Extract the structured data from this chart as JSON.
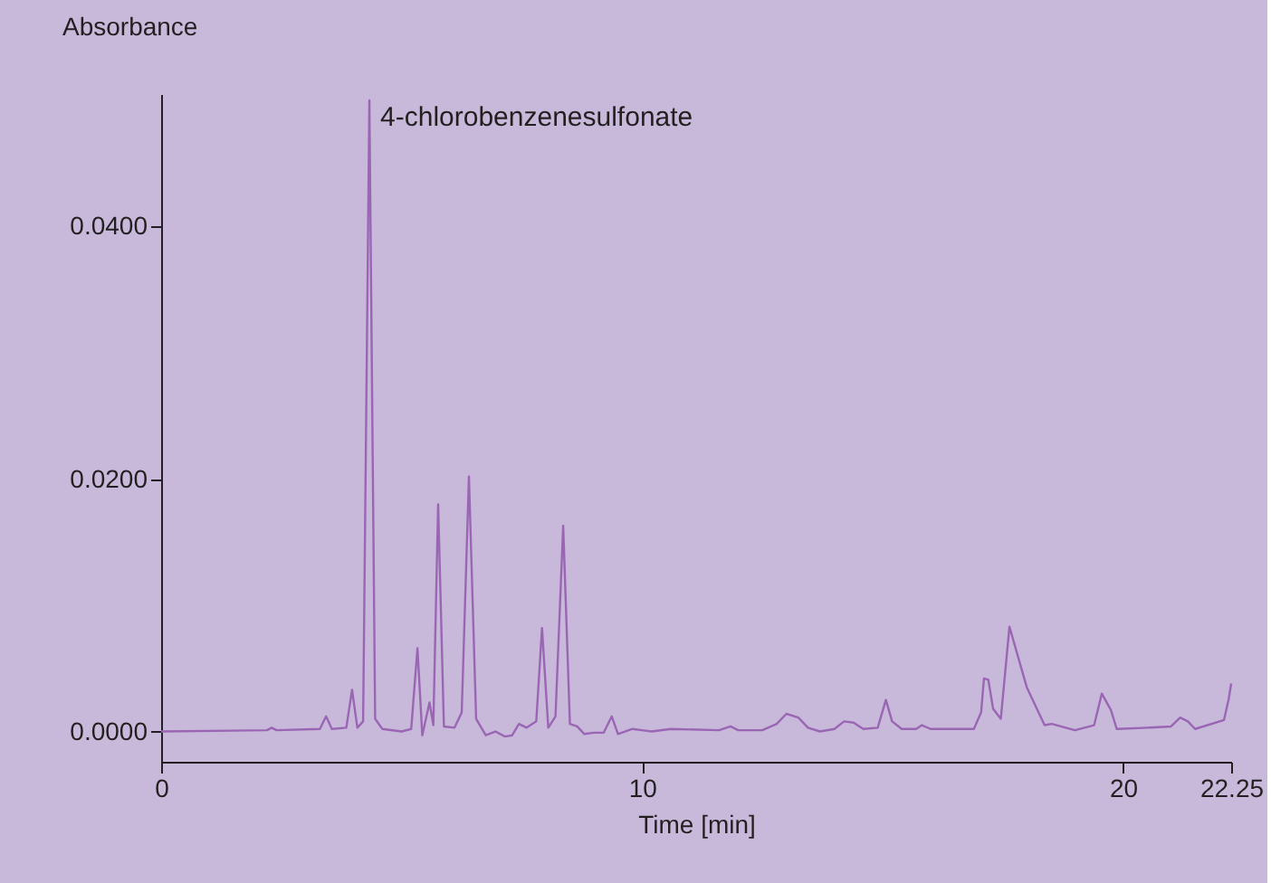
{
  "chart_data": {
    "type": "line",
    "xlabel": "Time [min]",
    "ylabel": "Absorbance",
    "x": [
      0,
      2.2,
      2.3,
      2.4,
      3.3,
      3.43,
      3.55,
      3.85,
      3.97,
      4.08,
      4.2,
      4.33,
      4.45,
      4.6,
      5.0,
      5.2,
      5.33,
      5.43,
      5.58,
      5.66,
      5.76,
      5.88,
      6.1,
      6.25,
      6.4,
      6.55,
      6.75,
      6.95,
      7.15,
      7.3,
      7.44,
      7.6,
      7.8,
      7.92,
      8.05,
      8.2,
      8.36,
      8.5,
      8.65,
      8.8,
      9.0,
      9.2,
      9.37,
      9.5,
      9.8,
      10.0,
      10.2,
      10.6,
      11.6,
      11.84,
      12.0,
      12.5,
      12.8,
      13.0,
      13.25,
      13.45,
      13.7,
      14.0,
      14.2,
      14.4,
      14.6,
      14.9,
      15.07,
      15.2,
      15.4,
      15.7,
      15.82,
      16.0,
      16.9,
      17.05,
      17.11,
      17.2,
      17.3,
      17.46,
      17.64,
      18.0,
      18.37,
      18.52,
      19.0,
      19.4,
      19.56,
      19.75,
      19.87,
      20.5,
      21.0,
      21.19,
      21.35,
      21.5,
      22.1,
      22.2,
      22.25
    ],
    "series": [
      {
        "color": "#9a66b4",
        "values": [
          0.0,
          0.0001,
          0.0003,
          0.0001,
          0.0002,
          0.0012,
          0.0002,
          0.0003,
          0.0033,
          0.0003,
          0.0008,
          0.05,
          0.001,
          0.0002,
          0.0,
          0.0002,
          0.0066,
          -0.0003,
          0.0023,
          0.0005,
          0.018,
          0.0004,
          0.0003,
          0.0015,
          0.0202,
          0.001,
          -0.0003,
          0.0,
          -0.0004,
          -0.0003,
          0.0006,
          0.0003,
          0.0008,
          0.0082,
          0.0003,
          0.0012,
          0.0163,
          0.0006,
          0.0004,
          -0.0002,
          -0.0001,
          -0.0001,
          0.0012,
          -0.0002,
          0.0002,
          0.0001,
          0.0,
          0.0002,
          0.0001,
          0.0004,
          0.0001,
          0.0001,
          0.0006,
          0.0014,
          0.0011,
          0.0003,
          0.0,
          0.0002,
          0.0008,
          0.0007,
          0.0002,
          0.0003,
          0.0025,
          0.0008,
          0.0002,
          0.0002,
          0.0005,
          0.0002,
          0.0002,
          0.0015,
          0.0042,
          0.0041,
          0.0018,
          0.001,
          0.0083,
          0.0035,
          0.0005,
          0.0006,
          0.0001,
          0.0005,
          0.003,
          0.0017,
          0.0002,
          0.0003,
          0.0004,
          0.0011,
          0.0008,
          0.0002,
          0.0009,
          0.0026,
          0.0038
        ]
      }
    ],
    "xlim": [
      0,
      22.25
    ],
    "xticks": [
      0,
      10,
      20,
      22.25
    ],
    "ylim": [
      -0.0024,
      0.0505
    ],
    "yticks": [
      {
        "value": 0,
        "label": "0.0000"
      },
      {
        "value": 0.02,
        "label": "0.0200"
      },
      {
        "value": 0.04,
        "label": "0.0400"
      }
    ],
    "annotations": [
      {
        "text": "4-chlorobenzenesulfonate",
        "x": 4.33,
        "y": 0.05
      }
    ],
    "grid": false,
    "line_style": "solid",
    "marker": "none"
  }
}
